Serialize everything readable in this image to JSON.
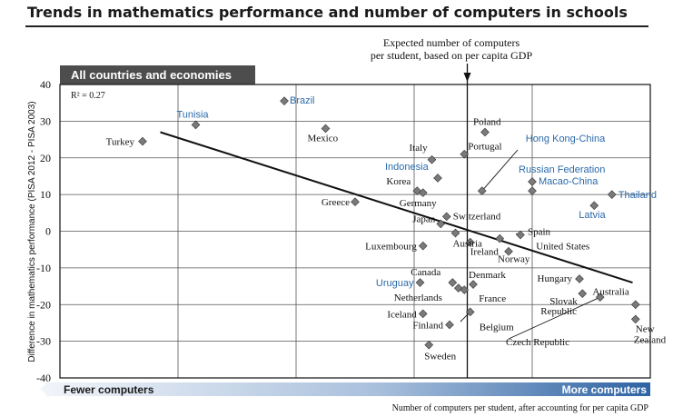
{
  "header": {
    "title": "Trends in mathematics performance and number of computers in schools"
  },
  "chart_data": {
    "type": "scatter",
    "panel_label": "All countries and economies",
    "r_squared": "R² = 0.27",
    "ylabel": "Difference in mathematics performance (PISA 2012 - PISA 2003)",
    "xlabel": "Number of computers per student, after accounting for per capita GDP",
    "ylim": [
      -40,
      40
    ],
    "yticks": [
      40,
      30,
      20,
      10,
      0,
      -10,
      -20,
      -30,
      -40
    ],
    "xlim": [
      0,
      100
    ],
    "grid": true,
    "expected_line": {
      "x": 69,
      "label_line1": "Expected number of computers",
      "label_line2": "per student, based on per capita GDP"
    },
    "arrow_left_label": "Fewer computers",
    "arrow_right_label": "More computers",
    "trend": {
      "x1": 17,
      "y1": 27,
      "x2": 97,
      "y2": -14
    },
    "points": [
      {
        "name": "Turkey",
        "x": 14,
        "y": 24.5,
        "hl": false
      },
      {
        "name": "Tunisia",
        "x": 23,
        "y": 29,
        "hl": true
      },
      {
        "name": "Brazil",
        "x": 38,
        "y": 35.5,
        "hl": true
      },
      {
        "name": "Mexico",
        "x": 45,
        "y": 28,
        "hl": false
      },
      {
        "name": "Greece",
        "x": 50,
        "y": 8,
        "hl": false
      },
      {
        "name": "Italy",
        "x": 63,
        "y": 19.5,
        "hl": false
      },
      {
        "name": "Indonesia",
        "x": 64,
        "y": 14.5,
        "hl": true
      },
      {
        "name": "Korea",
        "x": 60.5,
        "y": 11,
        "hl": false
      },
      {
        "name": "Germany",
        "x": 61.5,
        "y": 10.5,
        "hl": false
      },
      {
        "name": "Switzerland",
        "x": 65.5,
        "y": 4,
        "hl": false
      },
      {
        "name": "Japan",
        "x": 64.5,
        "y": 2,
        "hl": false
      },
      {
        "name": "Austria",
        "x": 67,
        "y": -0.5,
        "hl": false
      },
      {
        "name": "Luxembourg",
        "x": 61.5,
        "y": -4,
        "hl": false
      },
      {
        "name": "Poland",
        "x": 72,
        "y": 27,
        "hl": false
      },
      {
        "name": "Portugal",
        "x": 68.5,
        "y": 21,
        "hl": false
      },
      {
        "name": "Hong Kong-China",
        "x": 71.5,
        "y": 11,
        "hl": true
      },
      {
        "name": "Russian Federation",
        "x": 80,
        "y": 13.5,
        "hl": true
      },
      {
        "name": "Macao-China",
        "x": 80,
        "y": 11,
        "hl": true
      },
      {
        "name": "Thailand",
        "x": 93.5,
        "y": 10,
        "hl": true
      },
      {
        "name": "Latvia",
        "x": 90.5,
        "y": 7,
        "hl": true
      },
      {
        "name": "Spain",
        "x": 78,
        "y": -1,
        "hl": false
      },
      {
        "name": "Ireland",
        "x": 69.5,
        "y": -3,
        "hl": false
      },
      {
        "name": "United States",
        "x": 74.5,
        "y": -2,
        "hl": false
      },
      {
        "name": "Norway",
        "x": 76,
        "y": -5.5,
        "hl": false
      },
      {
        "name": "Uruguay",
        "x": 61,
        "y": -14,
        "hl": true
      },
      {
        "name": "Canada",
        "x": 66.5,
        "y": -14,
        "hl": false
      },
      {
        "name": "Denmark",
        "x": 70,
        "y": -14.5,
        "hl": false
      },
      {
        "name": "Netherlands",
        "x": 67.5,
        "y": -15.5,
        "hl": false
      },
      {
        "name": "France",
        "x": 68.5,
        "y": -16,
        "hl": false
      },
      {
        "name": "Hungary",
        "x": 88,
        "y": -13,
        "hl": false
      },
      {
        "name": "Slovak Republic",
        "x": 88.5,
        "y": -17,
        "hl": false
      },
      {
        "name": "Iceland",
        "x": 61.5,
        "y": -22.5,
        "hl": false
      },
      {
        "name": "Finland",
        "x": 66,
        "y": -25.5,
        "hl": false
      },
      {
        "name": "Belgium",
        "x": 69.5,
        "y": -22,
        "hl": false
      },
      {
        "name": "Sweden",
        "x": 62.5,
        "y": -31,
        "hl": false
      },
      {
        "name": "Czech Republic",
        "x": 91.5,
        "y": -18,
        "hl": false
      },
      {
        "name": "Australia",
        "x": 97.5,
        "y": -20,
        "hl": false
      },
      {
        "name": "New Zealand",
        "x": 97.5,
        "y": -24,
        "hl": false
      }
    ]
  }
}
